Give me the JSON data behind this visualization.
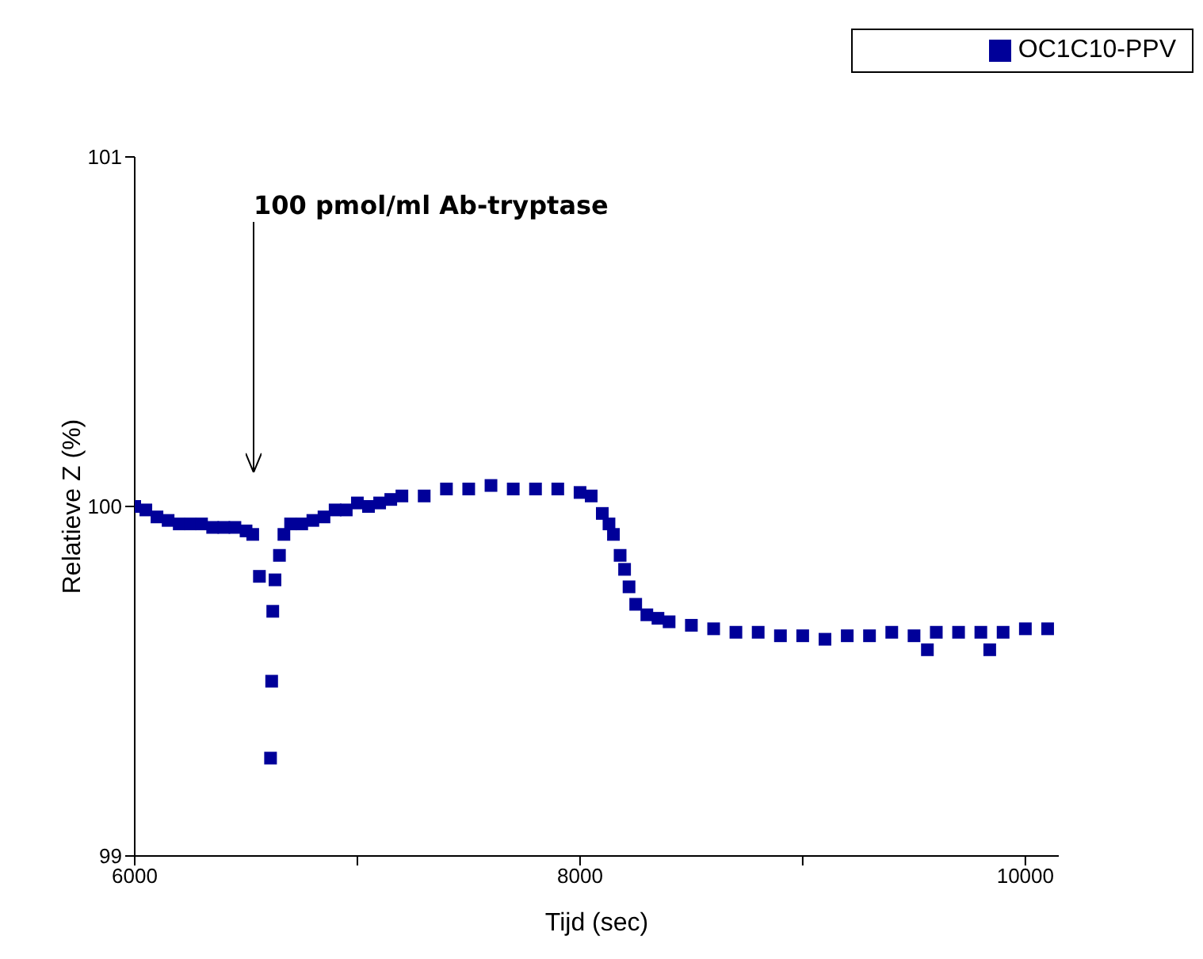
{
  "chart_data": {
    "type": "scatter",
    "xlabel": "Tijd (sec)",
    "ylabel": "Relatieve Z (%)",
    "marker": "square",
    "legend": "top right",
    "grid": false,
    "xlim": [
      6000,
      10150
    ],
    "xticks": [
      6000,
      {
        "value": 7000,
        "label": null
      },
      8000,
      {
        "value": 9000,
        "label": null
      },
      10000
    ],
    "ylim": [
      99,
      101
    ],
    "yticks": [
      99,
      100,
      101
    ],
    "annotations": [
      "100 pmol/ml Ab-tryptase"
    ],
    "series": [
      {
        "name": "OC1C10-PPV",
        "color": "#000099",
        "x": [
          6000,
          6050,
          6100,
          6150,
          6200,
          6250,
          6300,
          6350,
          6400,
          6450,
          6500,
          6530,
          6560,
          6610,
          6615,
          6620,
          6630,
          6650,
          6670,
          6700,
          6750,
          6800,
          6850,
          6900,
          6950,
          7000,
          7050,
          7100,
          7150,
          7200,
          7300,
          7400,
          7500,
          7600,
          7700,
          7800,
          7900,
          8000,
          8050,
          8100,
          8130,
          8150,
          8180,
          8200,
          8220,
          8250,
          8300,
          8350,
          8400,
          8500,
          8600,
          8700,
          8800,
          8900,
          9000,
          9100,
          9200,
          9300,
          9400,
          9500,
          9560,
          9600,
          9700,
          9800,
          9840,
          9900,
          10000,
          10100
        ],
        "values": [
          100.0,
          99.99,
          99.97,
          99.96,
          99.95,
          99.95,
          99.95,
          99.94,
          99.94,
          99.94,
          99.93,
          99.92,
          99.8,
          99.28,
          99.5,
          99.7,
          99.79,
          99.86,
          99.92,
          99.95,
          99.95,
          99.96,
          99.97,
          99.99,
          99.99,
          100.01,
          100.0,
          100.01,
          100.02,
          100.03,
          100.03,
          100.05,
          100.05,
          100.06,
          100.05,
          100.05,
          100.05,
          100.04,
          100.03,
          99.98,
          99.95,
          99.92,
          99.86,
          99.82,
          99.77,
          99.72,
          99.69,
          99.68,
          99.67,
          99.66,
          99.65,
          99.64,
          99.64,
          99.63,
          99.63,
          99.62,
          99.63,
          99.63,
          99.64,
          99.63,
          99.59,
          99.64,
          99.64,
          99.64,
          99.59,
          99.64,
          99.65,
          99.65
        ]
      }
    ]
  }
}
